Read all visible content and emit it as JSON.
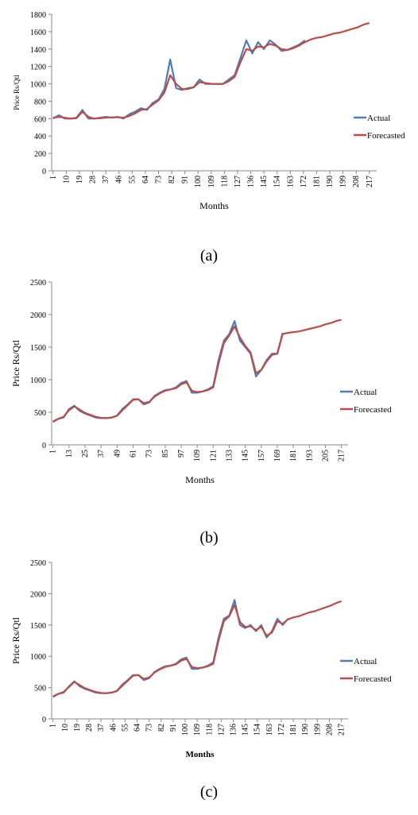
{
  "chart_data": [
    {
      "type": "line",
      "caption": "(a)",
      "x_label": "Months",
      "y_label": "Price Rs/Qtl",
      "x": [
        1,
        5,
        9,
        13,
        17,
        21,
        25,
        29,
        33,
        37,
        41,
        45,
        49,
        53,
        57,
        61,
        65,
        69,
        73,
        77,
        81,
        85,
        89,
        93,
        97,
        101,
        105,
        109,
        113,
        117,
        121,
        125,
        129,
        133,
        137,
        141,
        145,
        149,
        153,
        157,
        161,
        165,
        169,
        173,
        177,
        181,
        185,
        189,
        193,
        197,
        201,
        205,
        209,
        213,
        217
      ],
      "xlim": [
        0,
        222
      ],
      "xticks": [
        1,
        10,
        19,
        28,
        37,
        46,
        55,
        64,
        73,
        82,
        91,
        100,
        109,
        118,
        127,
        136,
        145,
        154,
        163,
        172,
        181,
        190,
        199,
        208,
        217
      ],
      "ylim": [
        0,
        1800
      ],
      "yticks": [
        0,
        200,
        400,
        600,
        800,
        1000,
        1200,
        1400,
        1600,
        1800
      ],
      "series": [
        {
          "name": "Actual",
          "color": "#4a7ebb",
          "values": [
            600,
            640,
            600,
            600,
            610,
            700,
            600,
            600,
            610,
            620,
            610,
            620,
            600,
            650,
            680,
            720,
            700,
            780,
            820,
            940,
            1280,
            950,
            930,
            950,
            960,
            1050,
            1000,
            1000,
            1000,
            1000,
            1050,
            1100,
            1300,
            1500,
            1350,
            1480,
            1400,
            1500,
            1450,
            1380,
            1390,
            1420,
            1450,
            1500,
            null,
            null,
            null,
            null,
            null,
            null,
            null,
            null,
            null,
            null,
            null
          ]
        },
        {
          "name": "Forecasted",
          "color": "#be4b48",
          "values": [
            610,
            620,
            610,
            600,
            605,
            680,
            620,
            600,
            605,
            610,
            615,
            615,
            610,
            630,
            660,
            700,
            710,
            760,
            810,
            900,
            1100,
            1000,
            940,
            940,
            960,
            1020,
            1010,
            1000,
            1000,
            1000,
            1030,
            1080,
            1250,
            1400,
            1380,
            1430,
            1420,
            1460,
            1440,
            1400,
            1390,
            1410,
            1440,
            1480,
            1510,
            1530,
            1540,
            1560,
            1580,
            1590,
            1610,
            1630,
            1650,
            1680,
            1700
          ]
        }
      ]
    },
    {
      "type": "line",
      "caption": "(b)",
      "x_label": "Months",
      "y_label": "Price Rs/Qtl",
      "x": [
        1,
        5,
        9,
        13,
        17,
        21,
        25,
        29,
        33,
        37,
        41,
        45,
        49,
        53,
        57,
        61,
        65,
        69,
        73,
        77,
        81,
        85,
        89,
        93,
        97,
        101,
        105,
        109,
        113,
        117,
        121,
        125,
        129,
        133,
        137,
        141,
        145,
        149,
        153,
        157,
        161,
        165,
        169,
        173,
        177,
        181,
        185,
        189,
        193,
        197,
        201,
        205,
        209,
        213,
        217
      ],
      "xlim": [
        0,
        222
      ],
      "xticks": [
        1,
        13,
        25,
        37,
        49,
        61,
        73,
        85,
        97,
        109,
        121,
        133,
        145,
        157,
        169,
        181,
        193,
        205,
        217
      ],
      "ylim": [
        0,
        2500
      ],
      "yticks": [
        0,
        500,
        1000,
        1500,
        2000,
        2500
      ],
      "series": [
        {
          "name": "Actual",
          "color": "#4a7ebb",
          "values": [
            350,
            400,
            420,
            550,
            600,
            520,
            480,
            450,
            420,
            410,
            410,
            420,
            450,
            550,
            620,
            700,
            700,
            620,
            650,
            750,
            800,
            840,
            850,
            880,
            950,
            980,
            800,
            800,
            820,
            850,
            900,
            1300,
            1600,
            1700,
            1900,
            1600,
            1500,
            1400,
            1050,
            1150,
            1300,
            1400,
            1400,
            1720,
            null,
            null,
            null,
            null,
            null,
            null,
            null,
            null,
            null,
            null,
            null
          ]
        },
        {
          "name": "Forecasted",
          "color": "#be4b48",
          "values": [
            360,
            400,
            430,
            530,
            590,
            540,
            490,
            460,
            430,
            415,
            410,
            420,
            445,
            530,
            610,
            690,
            700,
            640,
            660,
            740,
            790,
            830,
            850,
            870,
            930,
            960,
            830,
            810,
            820,
            840,
            880,
            1250,
            1560,
            1680,
            1820,
            1650,
            1520,
            1420,
            1100,
            1150,
            1280,
            1380,
            1400,
            1700,
            1720,
            1730,
            1740,
            1760,
            1780,
            1800,
            1820,
            1850,
            1870,
            1900,
            1920
          ]
        }
      ]
    },
    {
      "type": "line",
      "caption": "(c)",
      "x_label": "Months",
      "y_label": "Price Rs/Qtl",
      "x": [
        1,
        5,
        9,
        13,
        17,
        21,
        25,
        29,
        33,
        37,
        41,
        45,
        49,
        53,
        57,
        61,
        65,
        69,
        73,
        77,
        81,
        85,
        89,
        93,
        97,
        101,
        105,
        109,
        113,
        117,
        121,
        125,
        129,
        133,
        137,
        141,
        145,
        149,
        153,
        157,
        161,
        165,
        169,
        173,
        177,
        181,
        185,
        189,
        193,
        197,
        201,
        205,
        209,
        213,
        217
      ],
      "xlim": [
        0,
        222
      ],
      "xticks": [
        1,
        10,
        19,
        28,
        37,
        46,
        55,
        64,
        73,
        82,
        91,
        100,
        109,
        118,
        127,
        136,
        145,
        154,
        163,
        172,
        181,
        190,
        199,
        208,
        217
      ],
      "ylim": [
        0,
        2500
      ],
      "yticks": [
        0,
        500,
        1000,
        1500,
        2000,
        2500
      ],
      "series": [
        {
          "name": "Actual",
          "color": "#4a7ebb",
          "values": [
            350,
            400,
            420,
            520,
            600,
            520,
            480,
            450,
            420,
            410,
            410,
            420,
            450,
            550,
            620,
            700,
            700,
            620,
            650,
            750,
            800,
            840,
            850,
            880,
            950,
            980,
            800,
            800,
            820,
            850,
            900,
            1300,
            1600,
            1650,
            1900,
            1500,
            1450,
            1500,
            1400,
            1500,
            1300,
            1400,
            1600,
            1500,
            1600,
            null,
            null,
            null,
            null,
            null,
            null,
            null,
            null,
            null,
            null
          ]
        },
        {
          "name": "Forecasted",
          "color": "#be4b48",
          "values": [
            360,
            400,
            430,
            510,
            590,
            540,
            490,
            460,
            430,
            415,
            410,
            420,
            445,
            530,
            610,
            690,
            700,
            640,
            660,
            740,
            790,
            830,
            850,
            870,
            930,
            960,
            830,
            810,
            820,
            840,
            880,
            1250,
            1560,
            1640,
            1820,
            1550,
            1470,
            1480,
            1420,
            1470,
            1330,
            1380,
            1560,
            1520,
            1590,
            1620,
            1640,
            1670,
            1700,
            1720,
            1750,
            1780,
            1810,
            1850,
            1880
          ]
        }
      ]
    }
  ]
}
